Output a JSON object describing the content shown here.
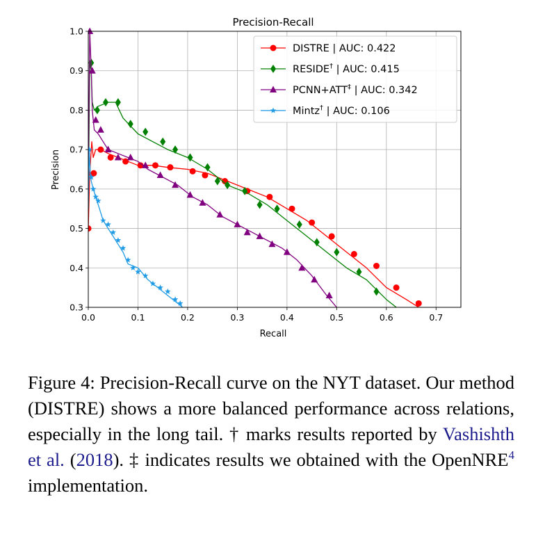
{
  "chart_data": {
    "type": "line",
    "title": "Precision-Recall",
    "xlabel": "Recall",
    "ylabel": "Precision",
    "xlim": [
      0.0,
      0.75
    ],
    "ylim": [
      0.3,
      1.0
    ],
    "xticks": [
      "0.0",
      "0.1",
      "0.2",
      "0.3",
      "0.4",
      "0.5",
      "0.6",
      "0.7"
    ],
    "yticks": [
      "0.3",
      "0.4",
      "0.5",
      "0.6",
      "0.7",
      "0.8",
      "0.9",
      "1.0"
    ],
    "grid": true,
    "legend_position": "top-right",
    "series": [
      {
        "name": "DISTRE | AUC: 0.422",
        "legend_main": "DISTRE | AUC: 0.422",
        "color": "#ff0000",
        "marker": "circle",
        "points": [
          [
            0.0,
            0.5
          ],
          [
            0.003,
            0.64
          ],
          [
            0.007,
            0.72
          ],
          [
            0.01,
            0.68
          ],
          [
            0.015,
            0.7
          ],
          [
            0.025,
            0.7
          ],
          [
            0.04,
            0.69
          ],
          [
            0.06,
            0.68
          ],
          [
            0.08,
            0.67
          ],
          [
            0.1,
            0.66
          ],
          [
            0.13,
            0.66
          ],
          [
            0.16,
            0.655
          ],
          [
            0.2,
            0.65
          ],
          [
            0.24,
            0.64
          ],
          [
            0.28,
            0.62
          ],
          [
            0.32,
            0.6
          ],
          [
            0.36,
            0.58
          ],
          [
            0.4,
            0.55
          ],
          [
            0.44,
            0.52
          ],
          [
            0.48,
            0.48
          ],
          [
            0.52,
            0.44
          ],
          [
            0.56,
            0.4
          ],
          [
            0.6,
            0.35
          ],
          [
            0.64,
            0.32
          ],
          [
            0.665,
            0.3
          ]
        ],
        "marker_points": [
          [
            0.0,
            0.5
          ],
          [
            0.011,
            0.64
          ],
          [
            0.025,
            0.7
          ],
          [
            0.045,
            0.68
          ],
          [
            0.075,
            0.67
          ],
          [
            0.105,
            0.66
          ],
          [
            0.135,
            0.66
          ],
          [
            0.165,
            0.655
          ],
          [
            0.21,
            0.645
          ],
          [
            0.235,
            0.635
          ],
          [
            0.275,
            0.62
          ],
          [
            0.32,
            0.595
          ],
          [
            0.365,
            0.58
          ],
          [
            0.41,
            0.55
          ],
          [
            0.45,
            0.515
          ],
          [
            0.49,
            0.48
          ],
          [
            0.535,
            0.435
          ],
          [
            0.58,
            0.405
          ],
          [
            0.62,
            0.35
          ],
          [
            0.665,
            0.31
          ]
        ]
      },
      {
        "name": "RESIDE† | AUC: 0.415",
        "legend_main": "RESIDE",
        "legend_sup": "†",
        "legend_rest": " | AUC: 0.415",
        "color": "#008000",
        "marker": "diamond",
        "points": [
          [
            0.0,
            0.55
          ],
          [
            0.003,
            0.92
          ],
          [
            0.006,
            0.9
          ],
          [
            0.008,
            0.82
          ],
          [
            0.012,
            0.8
          ],
          [
            0.02,
            0.81
          ],
          [
            0.04,
            0.82
          ],
          [
            0.055,
            0.82
          ],
          [
            0.07,
            0.78
          ],
          [
            0.1,
            0.74
          ],
          [
            0.13,
            0.72
          ],
          [
            0.16,
            0.7
          ],
          [
            0.2,
            0.68
          ],
          [
            0.24,
            0.65
          ],
          [
            0.28,
            0.61
          ],
          [
            0.32,
            0.59
          ],
          [
            0.36,
            0.56
          ],
          [
            0.4,
            0.52
          ],
          [
            0.44,
            0.48
          ],
          [
            0.48,
            0.44
          ],
          [
            0.52,
            0.4
          ],
          [
            0.56,
            0.37
          ],
          [
            0.6,
            0.32
          ],
          [
            0.62,
            0.3
          ]
        ],
        "marker_points": [
          [
            0.006,
            0.92
          ],
          [
            0.018,
            0.8
          ],
          [
            0.035,
            0.82
          ],
          [
            0.06,
            0.82
          ],
          [
            0.085,
            0.765
          ],
          [
            0.115,
            0.745
          ],
          [
            0.15,
            0.72
          ],
          [
            0.175,
            0.7
          ],
          [
            0.205,
            0.68
          ],
          [
            0.24,
            0.655
          ],
          [
            0.26,
            0.62
          ],
          [
            0.28,
            0.61
          ],
          [
            0.315,
            0.595
          ],
          [
            0.345,
            0.56
          ],
          [
            0.38,
            0.55
          ],
          [
            0.425,
            0.51
          ],
          [
            0.46,
            0.465
          ],
          [
            0.5,
            0.44
          ],
          [
            0.545,
            0.39
          ],
          [
            0.58,
            0.34
          ]
        ]
      },
      {
        "name": "PCNN+ATT‡ | AUC: 0.342",
        "legend_main": "PCNN+ATT",
        "legend_sup": "‡",
        "legend_rest": " | AUC: 0.342",
        "color": "#800080",
        "marker": "triangle",
        "points": [
          [
            0.0,
            0.62
          ],
          [
            0.003,
            1.0
          ],
          [
            0.006,
            0.9
          ],
          [
            0.008,
            0.8
          ],
          [
            0.012,
            0.75
          ],
          [
            0.02,
            0.74
          ],
          [
            0.03,
            0.72
          ],
          [
            0.04,
            0.7
          ],
          [
            0.06,
            0.69
          ],
          [
            0.08,
            0.68
          ],
          [
            0.1,
            0.67
          ],
          [
            0.12,
            0.65
          ],
          [
            0.15,
            0.63
          ],
          [
            0.18,
            0.61
          ],
          [
            0.21,
            0.58
          ],
          [
            0.24,
            0.56
          ],
          [
            0.27,
            0.53
          ],
          [
            0.3,
            0.51
          ],
          [
            0.33,
            0.49
          ],
          [
            0.36,
            0.47
          ],
          [
            0.39,
            0.45
          ],
          [
            0.42,
            0.42
          ],
          [
            0.45,
            0.38
          ],
          [
            0.48,
            0.33
          ],
          [
            0.5,
            0.3
          ]
        ],
        "marker_points": [
          [
            0.003,
            1.0
          ],
          [
            0.008,
            0.9
          ],
          [
            0.015,
            0.775
          ],
          [
            0.025,
            0.75
          ],
          [
            0.04,
            0.7
          ],
          [
            0.06,
            0.68
          ],
          [
            0.085,
            0.68
          ],
          [
            0.115,
            0.66
          ],
          [
            0.145,
            0.635
          ],
          [
            0.175,
            0.61
          ],
          [
            0.205,
            0.585
          ],
          [
            0.23,
            0.565
          ],
          [
            0.265,
            0.535
          ],
          [
            0.3,
            0.51
          ],
          [
            0.32,
            0.49
          ],
          [
            0.345,
            0.48
          ],
          [
            0.37,
            0.46
          ],
          [
            0.4,
            0.44
          ],
          [
            0.43,
            0.4
          ],
          [
            0.455,
            0.37
          ],
          [
            0.485,
            0.33
          ]
        ]
      },
      {
        "name": "Mintz† | AUC: 0.106",
        "legend_main": "Mintz",
        "legend_sup": "†",
        "legend_rest": " | AUC: 0.106",
        "color": "#1f9ae5",
        "marker": "star",
        "points": [
          [
            0.0,
            0.55
          ],
          [
            0.002,
            0.7
          ],
          [
            0.004,
            0.64
          ],
          [
            0.006,
            0.62
          ],
          [
            0.01,
            0.6
          ],
          [
            0.015,
            0.58
          ],
          [
            0.02,
            0.56
          ],
          [
            0.03,
            0.52
          ],
          [
            0.04,
            0.5
          ],
          [
            0.05,
            0.48
          ],
          [
            0.06,
            0.46
          ],
          [
            0.07,
            0.44
          ],
          [
            0.08,
            0.41
          ],
          [
            0.1,
            0.4
          ],
          [
            0.12,
            0.37
          ],
          [
            0.14,
            0.35
          ],
          [
            0.16,
            0.33
          ],
          [
            0.18,
            0.31
          ],
          [
            0.19,
            0.3
          ]
        ],
        "marker_points": [
          [
            0.002,
            0.7
          ],
          [
            0.006,
            0.63
          ],
          [
            0.01,
            0.6
          ],
          [
            0.015,
            0.58
          ],
          [
            0.02,
            0.57
          ],
          [
            0.03,
            0.52
          ],
          [
            0.04,
            0.51
          ],
          [
            0.05,
            0.49
          ],
          [
            0.06,
            0.47
          ],
          [
            0.07,
            0.45
          ],
          [
            0.08,
            0.42
          ],
          [
            0.09,
            0.4
          ],
          [
            0.1,
            0.39
          ],
          [
            0.115,
            0.38
          ],
          [
            0.13,
            0.36
          ],
          [
            0.145,
            0.35
          ],
          [
            0.16,
            0.34
          ],
          [
            0.175,
            0.32
          ],
          [
            0.185,
            0.31
          ]
        ]
      }
    ]
  },
  "caption": {
    "figure_label": "Figure 4: ",
    "text_1": "Precision-Recall curve on the NYT dataset. Our method (DISTRE) shows a more balanced performance across relations, especially in the long tail. † marks results reported by ",
    "citation_author": "Vashishth et al.",
    "citation_year_open": " (",
    "citation_year": "2018",
    "citation_year_close": "). ",
    "text_2": "‡ indicates results we obtained with the OpenNRE",
    "footnote": "4",
    "text_3": " implementation."
  }
}
